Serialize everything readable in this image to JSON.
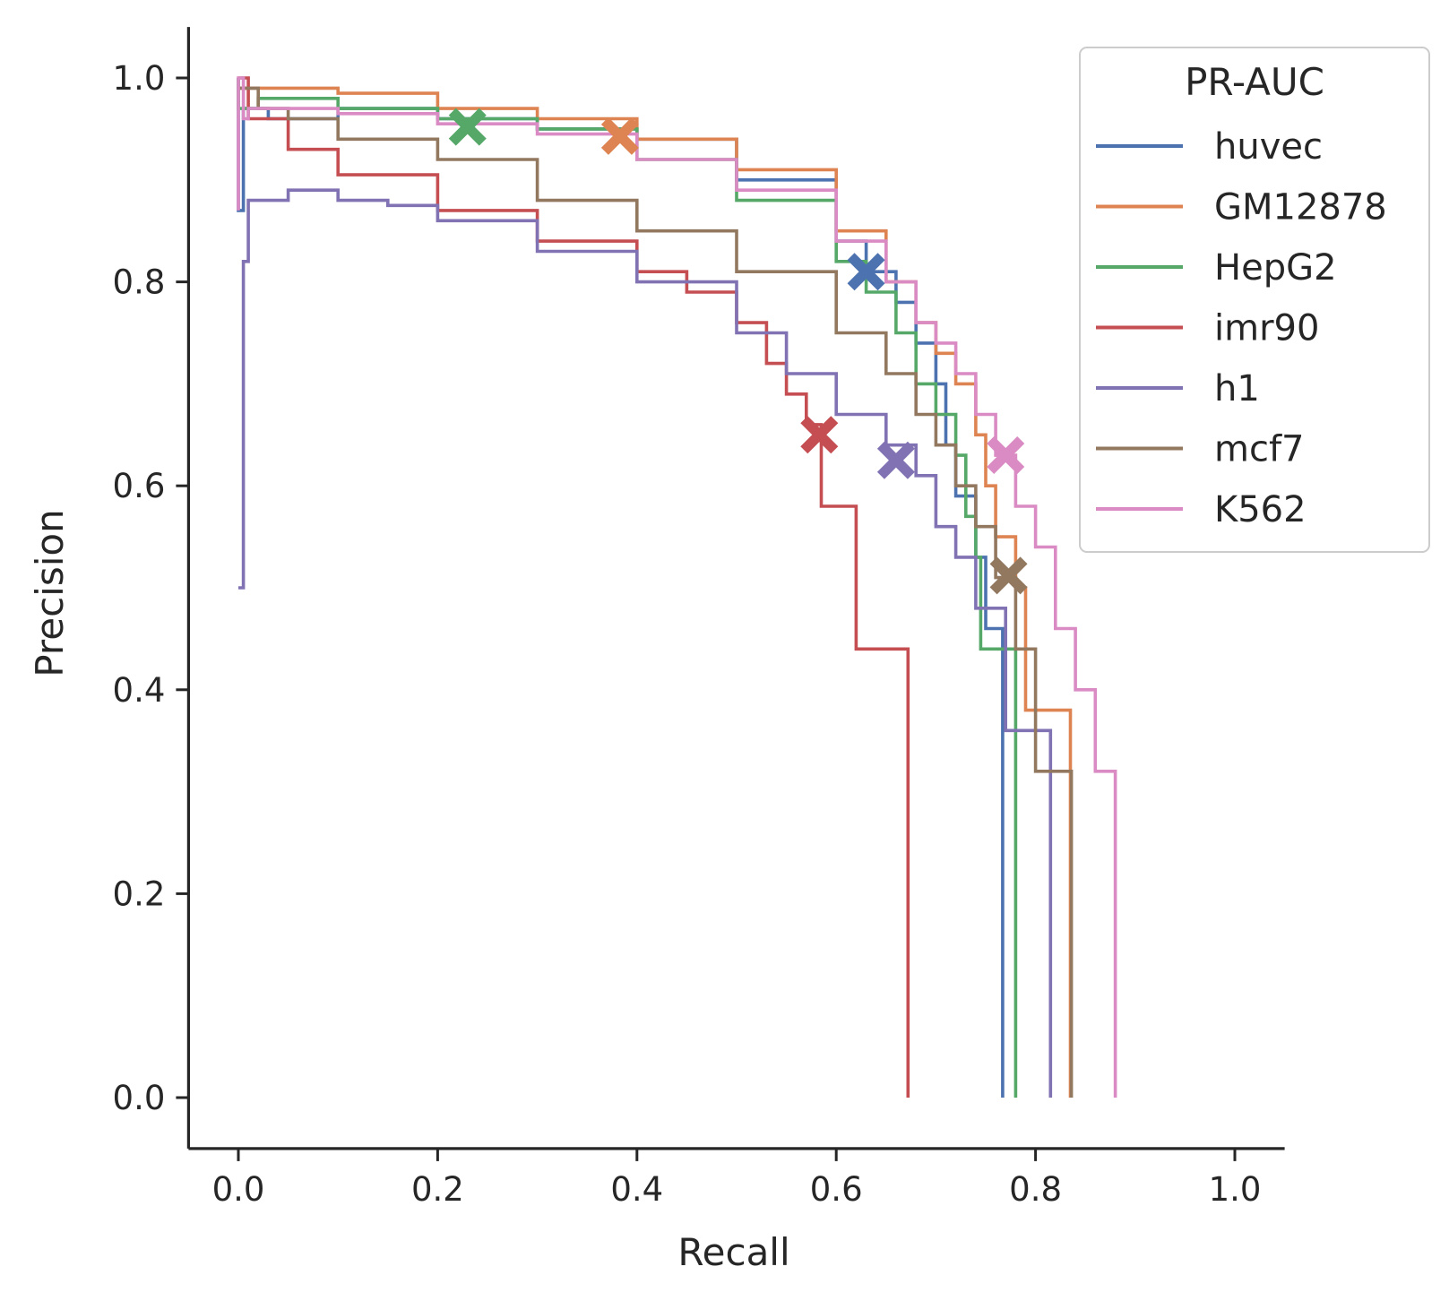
{
  "chart_data": {
    "type": "line",
    "xlabel": "Recall",
    "ylabel": "Precision",
    "xlim": [
      -0.05,
      1.05
    ],
    "ylim": [
      -0.05,
      1.05
    ],
    "xticks": [
      "0.0",
      "0.2",
      "0.4",
      "0.6",
      "0.8",
      "1.0"
    ],
    "yticks": [
      "0.0",
      "0.2",
      "0.4",
      "0.6",
      "0.8",
      "1.0"
    ],
    "grid": false,
    "legend": {
      "title": "PR-AUC",
      "placement": "top-right"
    },
    "series": [
      {
        "name": "huvec",
        "color": "#4c72b0",
        "points": [
          [
            0,
            1.0
          ],
          [
            0,
            0.87
          ],
          [
            0.005,
            0.97
          ],
          [
            0.03,
            0.96
          ],
          [
            0.1,
            0.97
          ],
          [
            0.2,
            0.96
          ],
          [
            0.3,
            0.95
          ],
          [
            0.4,
            0.94
          ],
          [
            0.5,
            0.9
          ],
          [
            0.6,
            0.84
          ],
          [
            0.63,
            0.81
          ],
          [
            0.66,
            0.78
          ],
          [
            0.68,
            0.74
          ],
          [
            0.7,
            0.7
          ],
          [
            0.71,
            0.64
          ],
          [
            0.72,
            0.59
          ],
          [
            0.74,
            0.53
          ],
          [
            0.75,
            0.46
          ],
          [
            0.765,
            0.46
          ],
          [
            0.767,
            0.0
          ]
        ],
        "marker": [
          0.63,
          0.81
        ]
      },
      {
        "name": "GM12878",
        "color": "#dd8452",
        "points": [
          [
            0,
            0.99
          ],
          [
            0.01,
            0.99
          ],
          [
            0.05,
            0.99
          ],
          [
            0.1,
            0.985
          ],
          [
            0.2,
            0.97
          ],
          [
            0.3,
            0.96
          ],
          [
            0.4,
            0.94
          ],
          [
            0.5,
            0.91
          ],
          [
            0.6,
            0.85
          ],
          [
            0.65,
            0.8
          ],
          [
            0.68,
            0.76
          ],
          [
            0.7,
            0.73
          ],
          [
            0.72,
            0.7
          ],
          [
            0.74,
            0.65
          ],
          [
            0.75,
            0.6
          ],
          [
            0.76,
            0.55
          ],
          [
            0.78,
            0.5
          ],
          [
            0.79,
            0.38
          ],
          [
            0.83,
            0.38
          ],
          [
            0.835,
            0.0
          ]
        ],
        "marker": [
          0.383,
          0.943
        ]
      },
      {
        "name": "HepG2",
        "color": "#55a868",
        "points": [
          [
            0,
            1.0
          ],
          [
            0,
            0.97
          ],
          [
            0.02,
            0.98
          ],
          [
            0.1,
            0.97
          ],
          [
            0.2,
            0.96
          ],
          [
            0.3,
            0.95
          ],
          [
            0.4,
            0.92
          ],
          [
            0.5,
            0.88
          ],
          [
            0.6,
            0.82
          ],
          [
            0.63,
            0.79
          ],
          [
            0.66,
            0.75
          ],
          [
            0.68,
            0.7
          ],
          [
            0.7,
            0.67
          ],
          [
            0.72,
            0.63
          ],
          [
            0.73,
            0.57
          ],
          [
            0.74,
            0.53
          ],
          [
            0.745,
            0.44
          ],
          [
            0.775,
            0.44
          ],
          [
            0.78,
            0.0
          ]
        ],
        "marker": [
          0.23,
          0.952
        ]
      },
      {
        "name": "imr90",
        "color": "#c44e52",
        "points": [
          [
            0,
            1.0
          ],
          [
            0.01,
            0.96
          ],
          [
            0.05,
            0.93
          ],
          [
            0.1,
            0.905
          ],
          [
            0.2,
            0.87
          ],
          [
            0.3,
            0.84
          ],
          [
            0.4,
            0.81
          ],
          [
            0.45,
            0.79
          ],
          [
            0.5,
            0.76
          ],
          [
            0.53,
            0.72
          ],
          [
            0.55,
            0.69
          ],
          [
            0.57,
            0.66
          ],
          [
            0.585,
            0.65
          ],
          [
            0.585,
            0.58
          ],
          [
            0.62,
            0.58
          ],
          [
            0.62,
            0.44
          ],
          [
            0.672,
            0.44
          ],
          [
            0.672,
            0.0
          ]
        ],
        "marker": [
          0.583,
          0.65
        ]
      },
      {
        "name": "h1",
        "color": "#8172b3",
        "points": [
          [
            0,
            0.5
          ],
          [
            0.005,
            0.82
          ],
          [
            0.01,
            0.88
          ],
          [
            0.03,
            0.88
          ],
          [
            0.05,
            0.89
          ],
          [
            0.07,
            0.89
          ],
          [
            0.1,
            0.88
          ],
          [
            0.15,
            0.875
          ],
          [
            0.2,
            0.86
          ],
          [
            0.3,
            0.83
          ],
          [
            0.4,
            0.8
          ],
          [
            0.5,
            0.75
          ],
          [
            0.55,
            0.71
          ],
          [
            0.6,
            0.67
          ],
          [
            0.65,
            0.64
          ],
          [
            0.68,
            0.61
          ],
          [
            0.7,
            0.56
          ],
          [
            0.72,
            0.53
          ],
          [
            0.74,
            0.48
          ],
          [
            0.765,
            0.48
          ],
          [
            0.77,
            0.36
          ],
          [
            0.81,
            0.36
          ],
          [
            0.815,
            0.0
          ]
        ],
        "marker": [
          0.66,
          0.625
        ]
      },
      {
        "name": "mcf7",
        "color": "#937860",
        "points": [
          [
            0,
            0.99
          ],
          [
            0.02,
            0.97
          ],
          [
            0.05,
            0.96
          ],
          [
            0.1,
            0.94
          ],
          [
            0.2,
            0.92
          ],
          [
            0.3,
            0.88
          ],
          [
            0.4,
            0.85
          ],
          [
            0.5,
            0.81
          ],
          [
            0.6,
            0.75
          ],
          [
            0.65,
            0.71
          ],
          [
            0.68,
            0.67
          ],
          [
            0.7,
            0.64
          ],
          [
            0.72,
            0.6
          ],
          [
            0.74,
            0.56
          ],
          [
            0.76,
            0.51
          ],
          [
            0.78,
            0.44
          ],
          [
            0.795,
            0.44
          ],
          [
            0.8,
            0.32
          ],
          [
            0.835,
            0.32
          ],
          [
            0.836,
            0.0
          ]
        ],
        "marker": [
          0.773,
          0.512
        ]
      },
      {
        "name": "K562",
        "color": "#da8bc3",
        "points": [
          [
            0,
            0.87
          ],
          [
            0,
            1.0
          ],
          [
            0.005,
            0.96
          ],
          [
            0.01,
            0.97
          ],
          [
            0.05,
            0.97
          ],
          [
            0.1,
            0.965
          ],
          [
            0.2,
            0.955
          ],
          [
            0.3,
            0.945
          ],
          [
            0.4,
            0.92
          ],
          [
            0.5,
            0.89
          ],
          [
            0.6,
            0.84
          ],
          [
            0.65,
            0.8
          ],
          [
            0.68,
            0.76
          ],
          [
            0.7,
            0.74
          ],
          [
            0.72,
            0.71
          ],
          [
            0.74,
            0.67
          ],
          [
            0.76,
            0.63
          ],
          [
            0.78,
            0.58
          ],
          [
            0.8,
            0.54
          ],
          [
            0.82,
            0.46
          ],
          [
            0.84,
            0.4
          ],
          [
            0.86,
            0.32
          ],
          [
            0.88,
            0.32
          ],
          [
            0.88,
            0.0
          ]
        ],
        "marker": [
          0.77,
          0.63
        ]
      }
    ]
  }
}
